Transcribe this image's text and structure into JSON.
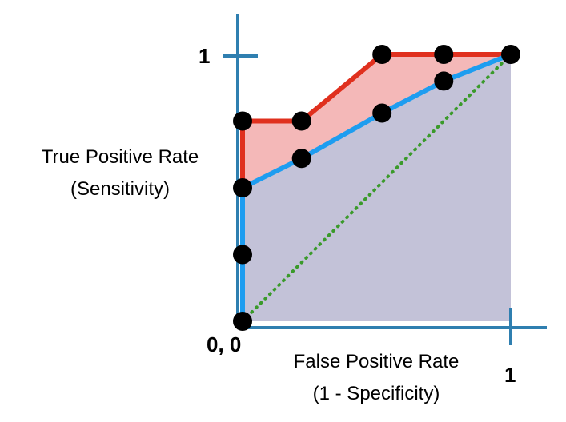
{
  "chart_data": {
    "type": "line",
    "title": "",
    "xlabel_lines": [
      "False Positive Rate",
      "(1 - Specificity)"
    ],
    "ylabel_lines": [
      "True Positive Rate",
      "(Sensitivity)"
    ],
    "xlim": [
      0,
      1
    ],
    "ylim": [
      0,
      1
    ],
    "grid": false,
    "tick_labels": {
      "origin": "0, 0",
      "x_one": "1",
      "y_one": "1"
    },
    "points": [
      {
        "x": 0.0,
        "y": 0.0
      },
      {
        "x": 0.0,
        "y": 0.25
      },
      {
        "x": 0.0,
        "y": 0.5
      },
      {
        "x": 0.0,
        "y": 0.75
      },
      {
        "x": 0.22,
        "y": 0.75
      },
      {
        "x": 0.22,
        "y": 0.61
      },
      {
        "x": 0.52,
        "y": 1.0
      },
      {
        "x": 0.52,
        "y": 0.78
      },
      {
        "x": 0.75,
        "y": 1.0
      },
      {
        "x": 0.75,
        "y": 0.9
      },
      {
        "x": 1.0,
        "y": 1.0
      }
    ],
    "series": [
      {
        "color": "#e0301e",
        "area_color": "#f4b8b8",
        "x": [
          0.0,
          0.0,
          0.22,
          0.52,
          0.75,
          1.0
        ],
        "y": [
          0.0,
          0.75,
          0.75,
          1.0,
          1.0,
          1.0
        ]
      },
      {
        "color": "#1e9df0",
        "area_color": "#c3c2d8",
        "x": [
          0.0,
          0.0,
          0.22,
          0.52,
          0.75,
          1.0
        ],
        "y": [
          0.0,
          0.5,
          0.61,
          0.78,
          0.9,
          1.0
        ]
      }
    ],
    "reference_line": {
      "color": "#3a9a2a",
      "style": "dotted",
      "x": [
        0,
        1
      ],
      "y": [
        0,
        1
      ]
    },
    "axis_color": "#2f7fb0",
    "point_color": "#000000"
  }
}
